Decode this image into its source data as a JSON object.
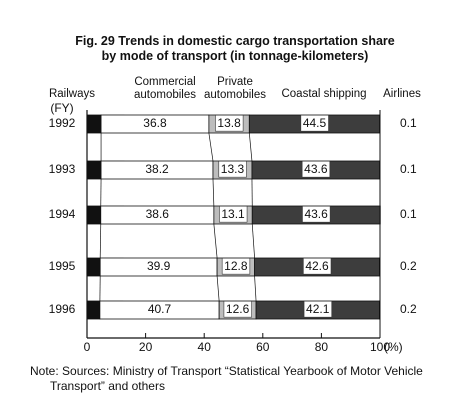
{
  "chart_data": {
    "type": "stacked-barh",
    "title": "Fig. 29 Trends in domestic cargo transportation share by mode of transport (in tonnage-kilometers)",
    "note": "Note: Sources: Ministry of Transport “Statistical Yearbook of Motor Vehicle Transport” and others",
    "y_label": "(FY)",
    "x_unit": "(%)",
    "categories": [
      "1992",
      "1993",
      "1994",
      "1995",
      "1996"
    ],
    "series": [
      {
        "name": "Railways",
        "color": "#111111",
        "values": [
          4.8,
          4.8,
          4.7,
          4.5,
          4.4
        ]
      },
      {
        "name": "Commercial automobiles",
        "color": "#ffffff",
        "values": [
          36.8,
          38.2,
          38.6,
          39.9,
          40.7
        ]
      },
      {
        "name": "Private automobiles",
        "color": "#bdbdbd",
        "values": [
          13.8,
          13.3,
          13.1,
          12.8,
          12.6
        ]
      },
      {
        "name": "Coastal shipping",
        "color": "#3d3d3d",
        "values": [
          44.5,
          43.6,
          43.6,
          42.6,
          42.1
        ]
      },
      {
        "name": "Airlines",
        "color": "#111111",
        "values": [
          0.1,
          0.1,
          0.1,
          0.2,
          0.2
        ]
      }
    ],
    "xlim": [
      0,
      100
    ],
    "xticks": [
      0,
      20,
      40,
      60,
      80,
      100
    ]
  }
}
